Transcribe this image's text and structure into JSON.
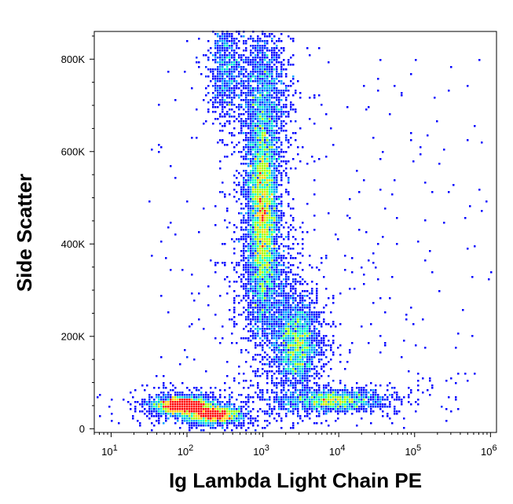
{
  "chart_data": {
    "type": "scatter",
    "subtype": "flow-cytometry-density-dot-plot",
    "title": "",
    "xlabel": "Ig Lambda Light Chain PE",
    "ylabel": "Side Scatter",
    "x_scale": "log",
    "y_scale": "linear",
    "xlim": [
      6,
      1200000
    ],
    "ylim": [
      -8000,
      860000
    ],
    "grid": false,
    "legend": "none",
    "x_ticks": [
      {
        "value": 10,
        "base": "10",
        "exp": "1"
      },
      {
        "value": 100,
        "base": "10",
        "exp": "2"
      },
      {
        "value": 1000,
        "base": "10",
        "exp": "3"
      },
      {
        "value": 10000,
        "base": "10",
        "exp": "4"
      },
      {
        "value": 100000,
        "base": "10",
        "exp": "5"
      },
      {
        "value": 1000000,
        "base": "10",
        "exp": "6"
      }
    ],
    "y_ticks": [
      {
        "value": 0,
        "label": "0"
      },
      {
        "value": 200000,
        "label": "200K"
      },
      {
        "value": 400000,
        "label": "400K"
      },
      {
        "value": 600000,
        "label": "600K"
      },
      {
        "value": 800000,
        "label": "800K"
      }
    ],
    "density_colormap": [
      "#0000ff",
      "#00a0ff",
      "#00ffc0",
      "#a0ff00",
      "#ffd000",
      "#ff0000"
    ],
    "populations": [
      {
        "x_log10": 1.95,
        "y": 50000,
        "x_spread_log10": 0.17,
        "y_spread": 9000,
        "points": 2600
      },
      {
        "x_log10": 2.35,
        "y": 30000,
        "x_spread_log10": 0.18,
        "y_spread": 9000,
        "points": 1700
      },
      {
        "x_log10": 3.0,
        "y": 470000,
        "x_spread_log10": 0.1,
        "y_spread": 110000,
        "points": 5200
      },
      {
        "x_log10": 3.0,
        "y": 720000,
        "x_spread_log10": 0.17,
        "y_spread": 75000,
        "points": 1400
      },
      {
        "x_log10": 2.5,
        "y": 780000,
        "x_spread_log10": 0.1,
        "y_spread": 55000,
        "points": 700
      },
      {
        "x_log10": 3.45,
        "y": 185000,
        "x_spread_log10": 0.15,
        "y_spread": 45000,
        "points": 2100
      },
      {
        "x_log10": 3.9,
        "y": 60000,
        "x_spread_log10": 0.35,
        "y_spread": 12000,
        "points": 1500
      },
      {
        "x_log10": 3.1,
        "y": 290000,
        "x_spread_log10": 0.22,
        "y_spread": 60000,
        "points": 700
      }
    ]
  }
}
